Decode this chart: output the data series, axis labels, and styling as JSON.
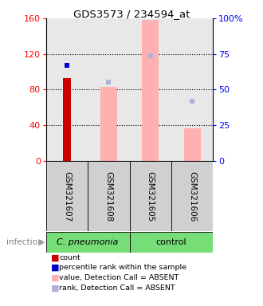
{
  "title": "GDS3573 / 234594_at",
  "samples": [
    "GSM321607",
    "GSM321608",
    "GSM321605",
    "GSM321606"
  ],
  "left_ylim": [
    0,
    160
  ],
  "right_ylim": [
    0,
    100
  ],
  "left_ticks": [
    0,
    40,
    80,
    120,
    160
  ],
  "right_ticks": [
    0,
    25,
    50,
    75,
    100
  ],
  "right_tick_labels": [
    "0",
    "25",
    "50",
    "75",
    "100%"
  ],
  "count_values": [
    93,
    null,
    null,
    null
  ],
  "count_color": "#cc0000",
  "percentile_values": [
    107,
    null,
    null,
    null
  ],
  "percentile_color": "#0000cc",
  "absent_value_values": [
    null,
    83,
    158,
    36
  ],
  "absent_value_color": "#ffb0b0",
  "absent_rank_values": [
    null,
    88,
    118,
    67
  ],
  "absent_rank_color": "#b0b0d8",
  "dotted_line_values": [
    40,
    80,
    120
  ],
  "background_color": "#ffffff",
  "legend_items": [
    "count",
    "percentile rank within the sample",
    "value, Detection Call = ABSENT",
    "rank, Detection Call = ABSENT"
  ],
  "legend_colors": [
    "#cc0000",
    "#0000cc",
    "#ffb0b0",
    "#b0b0d8"
  ],
  "cpneumonia_color": "#77dd77",
  "control_color": "#77dd77",
  "group_label_cpneumonia": "C. pneumonia",
  "group_label_control": "control",
  "infection_label": "infection"
}
